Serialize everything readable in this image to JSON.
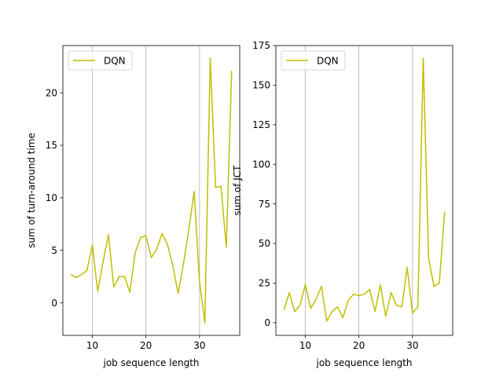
{
  "chart_data": [
    {
      "type": "line",
      "xlabel": "job sequence length",
      "ylabel": "sum of turn-around time",
      "xlim": [
        4.5,
        37.5
      ],
      "ylim": [
        -3.1,
        24.5
      ],
      "xticks": [
        10,
        20,
        30
      ],
      "yticks": [
        0,
        5,
        10,
        15,
        20
      ],
      "grid": "x-only",
      "legend": "upper left",
      "series": [
        {
          "name": "DQN",
          "color": "#bfbf00",
          "x": [
            6,
            7,
            8,
            9,
            10,
            11,
            12,
            13,
            14,
            15,
            16,
            17,
            18,
            19,
            20,
            21,
            22,
            23,
            24,
            25,
            26,
            27,
            28,
            29,
            30,
            31,
            32,
            33,
            34,
            35,
            36
          ],
          "y": [
            2.7,
            2.4,
            2.7,
            3.1,
            5.5,
            1.1,
            3.9,
            6.5,
            1.5,
            2.5,
            2.5,
            1.0,
            4.8,
            6.2,
            6.4,
            4.3,
            5.1,
            6.6,
            5.6,
            3.6,
            0.9,
            3.7,
            7.0,
            10.6,
            2.0,
            -1.9,
            23.3,
            11.0,
            11.1,
            5.3,
            22.1
          ]
        }
      ]
    },
    {
      "type": "line",
      "xlabel": "job sequence length",
      "ylabel": "sum of JCT",
      "xlim": [
        4.5,
        37.5
      ],
      "ylim": [
        -8,
        175
      ],
      "xticks": [
        10,
        20,
        30
      ],
      "yticks": [
        0,
        25,
        50,
        75,
        100,
        125,
        150,
        175
      ],
      "grid": "x-only",
      "legend": "upper left",
      "series": [
        {
          "name": "DQN",
          "color": "#bfbf00",
          "x": [
            6,
            7,
            8,
            9,
            10,
            11,
            12,
            13,
            14,
            15,
            16,
            17,
            18,
            19,
            20,
            21,
            22,
            23,
            24,
            25,
            26,
            27,
            28,
            29,
            30,
            31,
            32,
            33,
            34,
            35,
            36
          ],
          "y": [
            8,
            19,
            7,
            11,
            24,
            9,
            15,
            23,
            1,
            7,
            10,
            3,
            14,
            18,
            17,
            18,
            21,
            7,
            24,
            4,
            19,
            11,
            10,
            35,
            6,
            10,
            167,
            41,
            23,
            25,
            70
          ]
        }
      ]
    }
  ]
}
